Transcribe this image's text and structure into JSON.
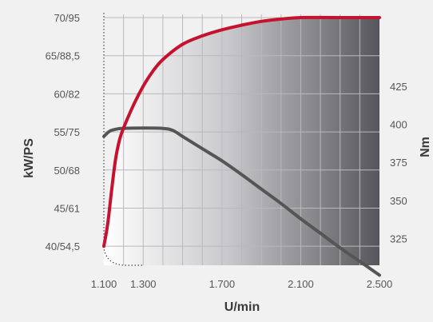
{
  "chart_data": {
    "type": "line",
    "title": "",
    "xlabel": "U/min",
    "ylabel_left": "kW/PS",
    "ylabel_right": "Nm",
    "x_ticks": [
      "1.100",
      "1.300",
      "1.700",
      "2.100",
      "2.500"
    ],
    "x_tick_values": [
      1100,
      1300,
      1700,
      2100,
      2500
    ],
    "xlim": [
      1100,
      2500
    ],
    "y_left_ticks": [
      "40/54,5",
      "45/61",
      "50/68",
      "55/75",
      "60/82",
      "65/88,5",
      "70/95"
    ],
    "y_left_values": [
      40,
      45,
      50,
      55,
      60,
      65,
      70
    ],
    "ylim_left_kw": [
      37.5,
      70
    ],
    "y_right_ticks": [
      "325",
      "350",
      "375",
      "400",
      "425"
    ],
    "y_right_values": [
      325,
      350,
      375,
      400,
      425
    ],
    "ylim_right_nm": [
      307.5,
      470
    ],
    "grid": true,
    "series": [
      {
        "axis": "left",
        "unit": "kW",
        "color": "#c4122f",
        "points": [
          [
            1100,
            40
          ],
          [
            1120,
            43
          ],
          [
            1140,
            47.5
          ],
          [
            1160,
            51.5
          ],
          [
            1180,
            54
          ],
          [
            1200,
            55.5
          ],
          [
            1250,
            58.5
          ],
          [
            1300,
            61
          ],
          [
            1350,
            63
          ],
          [
            1400,
            64.5
          ],
          [
            1500,
            66.5
          ],
          [
            1600,
            67.6
          ],
          [
            1700,
            68.4
          ],
          [
            1800,
            69
          ],
          [
            1900,
            69.5
          ],
          [
            2000,
            69.8
          ],
          [
            2100,
            70
          ],
          [
            2300,
            70
          ],
          [
            2500,
            70
          ]
        ]
      },
      {
        "axis": "right",
        "unit": "Nm",
        "color": "#555555",
        "points": [
          [
            1100,
            392
          ],
          [
            1130,
            395.5
          ],
          [
            1170,
            397
          ],
          [
            1200,
            397.3
          ],
          [
            1300,
            397.5
          ],
          [
            1400,
            397.3
          ],
          [
            1450,
            396
          ],
          [
            1500,
            392
          ],
          [
            1600,
            384
          ],
          [
            1700,
            376
          ],
          [
            1800,
            367
          ],
          [
            1900,
            357.5
          ],
          [
            2000,
            348
          ],
          [
            2100,
            338
          ],
          [
            2200,
            328.5
          ],
          [
            2300,
            319
          ],
          [
            2400,
            310
          ],
          [
            2500,
            301
          ]
        ]
      }
    ],
    "area_fill_gradient": [
      "#ffffff",
      "#55555b"
    ]
  }
}
